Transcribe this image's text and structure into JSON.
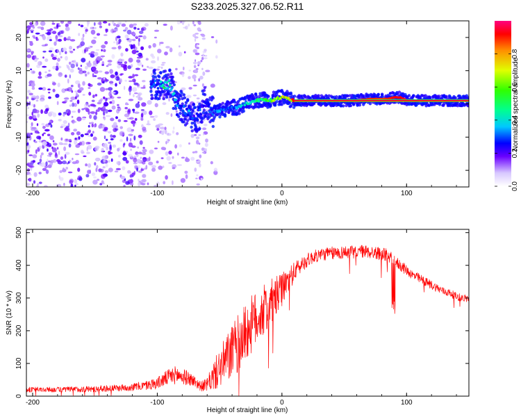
{
  "title": "S233.2025.327.06.52.R11",
  "chart_data": [
    {
      "type": "heatmap",
      "xlabel": "Height of straight line (km)",
      "ylabel": "Frequency (Hz)",
      "xlim": [
        -205,
        150
      ],
      "ylim": [
        -25,
        25
      ],
      "x_ticks": [
        -200,
        -100,
        0,
        100
      ],
      "x_tick_labels": [
        "-200",
        "-100",
        "0",
        "100"
      ],
      "y_ticks": [
        -20,
        -10,
        0,
        10,
        20
      ],
      "y_tick_labels": [
        "-20",
        "-10",
        "0",
        "10",
        "20"
      ],
      "colorbar": {
        "label": "Normalized spectral amplitude",
        "range": [
          0,
          1
        ],
        "ticks": [
          0.0,
          0.2,
          0.4,
          0.6,
          0.8
        ],
        "tick_labels": [
          "0.0",
          "0.2",
          "0.4",
          "0.6",
          "0.8"
        ]
      },
      "ridge": {
        "x": [
          -100,
          -95,
          -90,
          -85,
          -80,
          -75,
          -70,
          -66,
          -62,
          -58,
          -55,
          -50,
          -45,
          -40,
          -35,
          -30,
          -25,
          -20,
          -15,
          -10,
          -5,
          0,
          5,
          10,
          20,
          40,
          60,
          70,
          80,
          85,
          90,
          95,
          100,
          120,
          150
        ],
        "y": [
          6,
          5.5,
          6,
          1,
          -1,
          -3,
          -4.5,
          -3,
          1,
          -1.5,
          -2.5,
          -2,
          -1.5,
          -1,
          -1,
          0,
          0.5,
          1,
          1.5,
          1,
          1.5,
          2,
          1.5,
          1,
          1,
          1,
          1,
          1.5,
          1.5,
          1.5,
          2,
          2,
          1,
          1,
          1
        ],
        "amp": [
          0.3,
          0.5,
          0.45,
          0.35,
          0.3,
          0.35,
          0.25,
          0.3,
          0.25,
          0.3,
          0.3,
          0.35,
          0.3,
          0.35,
          0.35,
          0.4,
          0.45,
          0.5,
          0.55,
          0.6,
          0.65,
          0.7,
          0.8,
          0.9,
          0.95,
          0.95,
          0.92,
          0.9,
          0.88,
          0.9,
          0.92,
          0.92,
          0.95,
          0.95,
          0.95
        ]
      }
    },
    {
      "type": "line",
      "xlabel": "Height of straight line (km)",
      "ylabel": "SNR (10 * v/v)",
      "xlim": [
        -205,
        150
      ],
      "ylim": [
        0,
        510
      ],
      "x_ticks": [
        -200,
        -100,
        0,
        100
      ],
      "x_tick_labels": [
        "-200",
        "-100",
        "0",
        "100"
      ],
      "y_ticks": [
        0,
        100,
        200,
        300,
        400,
        500
      ],
      "y_tick_labels": [
        "0",
        "100",
        "200",
        "300",
        "400",
        "500"
      ],
      "series": [
        {
          "name": "SNR",
          "color": "#ff0000",
          "x": [
            -205,
            -180,
            -150,
            -130,
            -120,
            -110,
            -100,
            -95,
            -90,
            -85,
            -80,
            -75,
            -70,
            -65,
            -60,
            -55,
            -50,
            -45,
            -40,
            -35,
            -30,
            -25,
            -20,
            -15,
            -10,
            -5,
            0,
            5,
            10,
            15,
            20,
            25,
            30,
            35,
            40,
            45,
            50,
            55,
            60,
            65,
            70,
            75,
            80,
            85,
            90,
            95,
            100,
            105,
            110,
            115,
            120,
            125,
            130,
            135,
            140,
            145,
            150
          ],
          "mean": [
            20,
            20,
            22,
            25,
            28,
            32,
            40,
            50,
            60,
            65,
            60,
            55,
            45,
            30,
            35,
            60,
            85,
            110,
            135,
            160,
            190,
            215,
            240,
            260,
            280,
            300,
            325,
            355,
            380,
            400,
            415,
            425,
            432,
            435,
            437,
            438,
            440,
            440,
            442,
            443,
            440,
            438,
            435,
            430,
            415,
            400,
            385,
            370,
            360,
            350,
            340,
            330,
            320,
            315,
            305,
            300,
            298
          ],
          "noise": [
            8,
            8,
            10,
            10,
            12,
            14,
            18,
            22,
            25,
            28,
            25,
            22,
            18,
            15,
            20,
            45,
            60,
            75,
            85,
            90,
            90,
            90,
            85,
            80,
            75,
            65,
            50,
            40,
            30,
            25,
            22,
            20,
            20,
            20,
            20,
            20,
            20,
            20,
            20,
            20,
            20,
            20,
            20,
            20,
            18,
            18,
            16,
            15,
            15,
            14,
            14,
            13,
            12,
            12,
            12,
            12,
            12
          ]
        }
      ]
    }
  ]
}
